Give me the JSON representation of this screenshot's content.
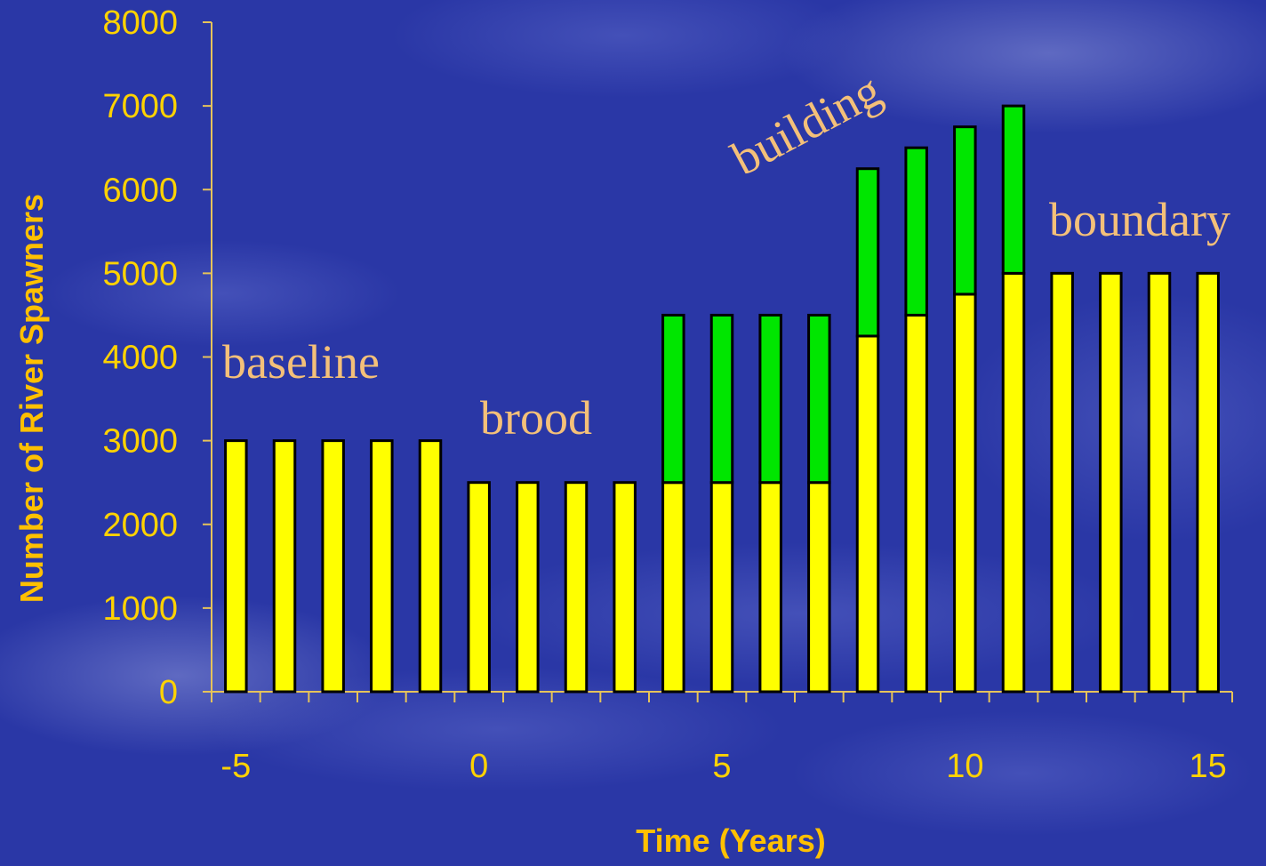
{
  "chart_data": {
    "type": "bar",
    "stacked": true,
    "x": [
      -5,
      -4,
      -3,
      -2,
      -1,
      0,
      1,
      2,
      3,
      4,
      5,
      6,
      7,
      8,
      9,
      10,
      11,
      12,
      13,
      14,
      15
    ],
    "series": [
      {
        "color": "#ffff00",
        "values": [
          3000,
          3000,
          3000,
          3000,
          3000,
          2500,
          2500,
          2500,
          2500,
          2500,
          2500,
          2500,
          2500,
          4250,
          4500,
          4750,
          5000,
          5000,
          5000,
          5000,
          5000
        ]
      },
      {
        "color": "#00e600",
        "values": [
          0,
          0,
          0,
          0,
          0,
          0,
          0,
          0,
          0,
          2000,
          2000,
          2000,
          2000,
          2000,
          2000,
          2000,
          2000,
          0,
          0,
          0,
          0
        ]
      }
    ],
    "xlabel": "Time (Years)",
    "ylabel": "Number of River Spawners",
    "ylim": [
      0,
      8000
    ],
    "y_ticks": [
      0,
      1000,
      2000,
      3000,
      4000,
      5000,
      6000,
      7000,
      8000
    ],
    "x_ticks": [
      -5,
      0,
      5,
      10,
      15
    ],
    "grid": false,
    "annotations": [
      "baseline",
      "brood",
      "building",
      "boundary"
    ]
  },
  "colors": {
    "background": "#2a37a6",
    "axis": "#e6c35a",
    "tick_text": "#ffd200",
    "annotation_text": "#f4c079"
  }
}
